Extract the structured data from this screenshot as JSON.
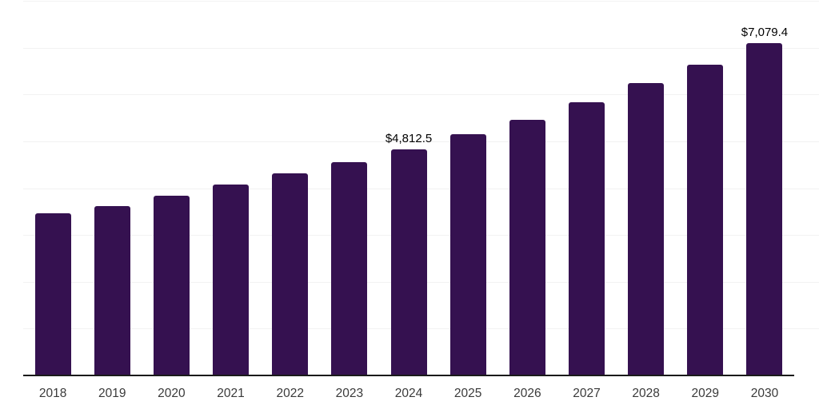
{
  "chart_data": {
    "type": "bar",
    "title": "",
    "xlabel": "",
    "ylabel": "",
    "categories": [
      "2018",
      "2019",
      "2020",
      "2021",
      "2022",
      "2023",
      "2024",
      "2025",
      "2026",
      "2027",
      "2028",
      "2029",
      "2030"
    ],
    "values": [
      3450,
      3600,
      3820,
      4060,
      4300,
      4530,
      4812.5,
      5130,
      5450,
      5810,
      6220,
      6620,
      7079.4
    ],
    "value_labels": [
      "",
      "",
      "",
      "",
      "",
      "",
      "$4,812.5",
      "",
      "",
      "",
      "",
      "",
      "$7,079.4"
    ],
    "ylim": [
      0,
      8000
    ],
    "gridline_interval": 1000,
    "grid": "horizontal gridlines only, no y-axis tick labels, no legend, no title",
    "legend": "none",
    "note": "Only the 2024 and 2030 bars show data labels; remaining values estimated from the 0-8000 gridline scale"
  },
  "style": {
    "bar_color": "#351150",
    "axis_color": "#1a1a1a",
    "gridline_color": "#f2f2f2",
    "label_color": "#000000",
    "tick_label_color": "#3a3a3a",
    "background": "#ffffff"
  }
}
